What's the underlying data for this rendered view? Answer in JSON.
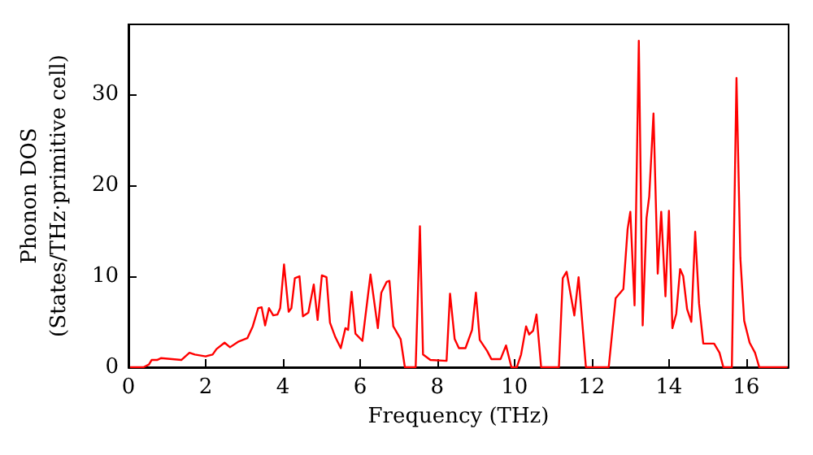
{
  "chart_data": {
    "type": "line",
    "xlabel": "Frequency (THz)",
    "ylabel": "Phonon DOS\n(States/THz·primitive cell)",
    "xlim": [
      0,
      17.1
    ],
    "xticks": [
      0,
      2,
      4,
      6,
      8,
      10,
      12,
      14,
      16
    ],
    "ylim": [
      0,
      37.7
    ],
    "yticks": [
      0,
      10,
      20,
      30
    ],
    "marker": "none",
    "line_style": "solid",
    "x": [
      0.04,
      0.39,
      0.53,
      0.6,
      0.74,
      0.84,
      1.37,
      1.58,
      1.72,
      2.0,
      2.18,
      2.28,
      2.49,
      2.63,
      2.84,
      3.08,
      3.22,
      3.36,
      3.45,
      3.54,
      3.64,
      3.75,
      3.86,
      3.93,
      4.03,
      4.15,
      4.22,
      4.31,
      4.43,
      4.52,
      4.66,
      4.8,
      4.9,
      5.01,
      5.13,
      5.22,
      5.36,
      5.5,
      5.62,
      5.69,
      5.78,
      5.88,
      6.06,
      6.27,
      6.46,
      6.55,
      6.69,
      6.76,
      6.86,
      7.05,
      7.16,
      7.44,
      7.55,
      7.63,
      7.82,
      8.24,
      8.33,
      8.45,
      8.56,
      8.73,
      8.9,
      9.0,
      9.1,
      9.29,
      9.4,
      9.64,
      9.78,
      9.92,
      10.06,
      10.17,
      10.3,
      10.38,
      10.48,
      10.57,
      10.69,
      11.15,
      11.25,
      11.35,
      11.55,
      11.66,
      11.85,
      12.44,
      12.62,
      12.82,
      12.93,
      13.0,
      13.11,
      13.22,
      13.32,
      13.42,
      13.49,
      13.6,
      13.71,
      13.8,
      13.91,
      14.0,
      14.09,
      14.19,
      14.29,
      14.37,
      14.47,
      14.58,
      14.68,
      14.78,
      14.89,
      15.17,
      15.31,
      15.41,
      15.63,
      15.75,
      15.85,
      15.95,
      16.09,
      16.23,
      16.34,
      17.07
    ],
    "series": [
      {
        "color": "#ff0000",
        "values": [
          0,
          0,
          0.3,
          0.8,
          0.8,
          1.0,
          0.8,
          1.6,
          1.4,
          1.2,
          1.4,
          2.0,
          2.7,
          2.2,
          2.8,
          3.2,
          4.5,
          6.5,
          6.6,
          4.6,
          6.5,
          5.7,
          5.8,
          6.5,
          11.3,
          6.1,
          6.5,
          9.8,
          10.0,
          5.6,
          6.0,
          9.1,
          5.2,
          10.1,
          9.9,
          4.9,
          3.3,
          2.1,
          4.3,
          4.1,
          8.3,
          3.7,
          2.9,
          10.2,
          4.3,
          8.2,
          9.4,
          9.5,
          4.5,
          3.1,
          0,
          0,
          15.5,
          1.4,
          0.8,
          0.7,
          8.1,
          3.1,
          2.1,
          2.1,
          4.1,
          8.2,
          3.0,
          1.8,
          0.9,
          0.9,
          2.4,
          0,
          0,
          1.4,
          4.5,
          3.6,
          4.0,
          5.8,
          0,
          0,
          9.8,
          10.5,
          5.7,
          9.9,
          0,
          0,
          7.6,
          8.6,
          15.2,
          17.1,
          6.8,
          35.9,
          4.6,
          16.4,
          18.8,
          27.9,
          10.3,
          17.1,
          7.8,
          17.2,
          4.3,
          5.9,
          10.8,
          10.0,
          6.4,
          5.0,
          14.9,
          7.0,
          2.6,
          2.6,
          1.6,
          0,
          0,
          31.8,
          12.0,
          5.1,
          2.7,
          1.6,
          0,
          0
        ]
      }
    ]
  }
}
